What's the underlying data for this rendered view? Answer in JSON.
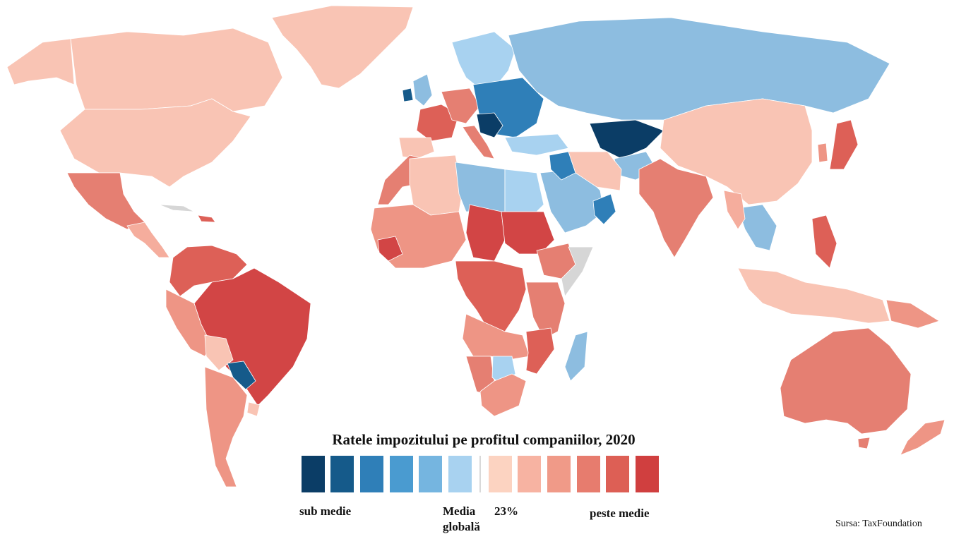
{
  "legend": {
    "title": "Ratele impozitului pe profitul companiilor, 2020",
    "below_label": "sub medie",
    "average_label_line1": "Media",
    "average_label_line2": "globală",
    "average_value": "23%",
    "above_label": "peste medie",
    "below_colors": [
      "#0b3d66",
      "#155a8a",
      "#2f7fb8",
      "#4a9bd0",
      "#75b5e0",
      "#a8d2f0"
    ],
    "above_colors": [
      "#fcd3c1",
      "#f7b3a2",
      "#f09a88",
      "#e77c6e",
      "#dd5f55",
      "#d03f3f"
    ]
  },
  "source": "Sursa: TaxFoundation",
  "palette": {
    "no_data": "#d6d6d6",
    "b1": "#0b3d66",
    "b2": "#155a8a",
    "b3": "#2f7fb8",
    "b4": "#4a9bd0",
    "b5": "#8dbde0",
    "b6": "#a8d2f0",
    "r1": "#f9c4b4",
    "r2": "#f5ad9d",
    "r3": "#ee9585",
    "r4": "#e57f72",
    "r5": "#dd6057",
    "r6": "#d24545"
  }
}
